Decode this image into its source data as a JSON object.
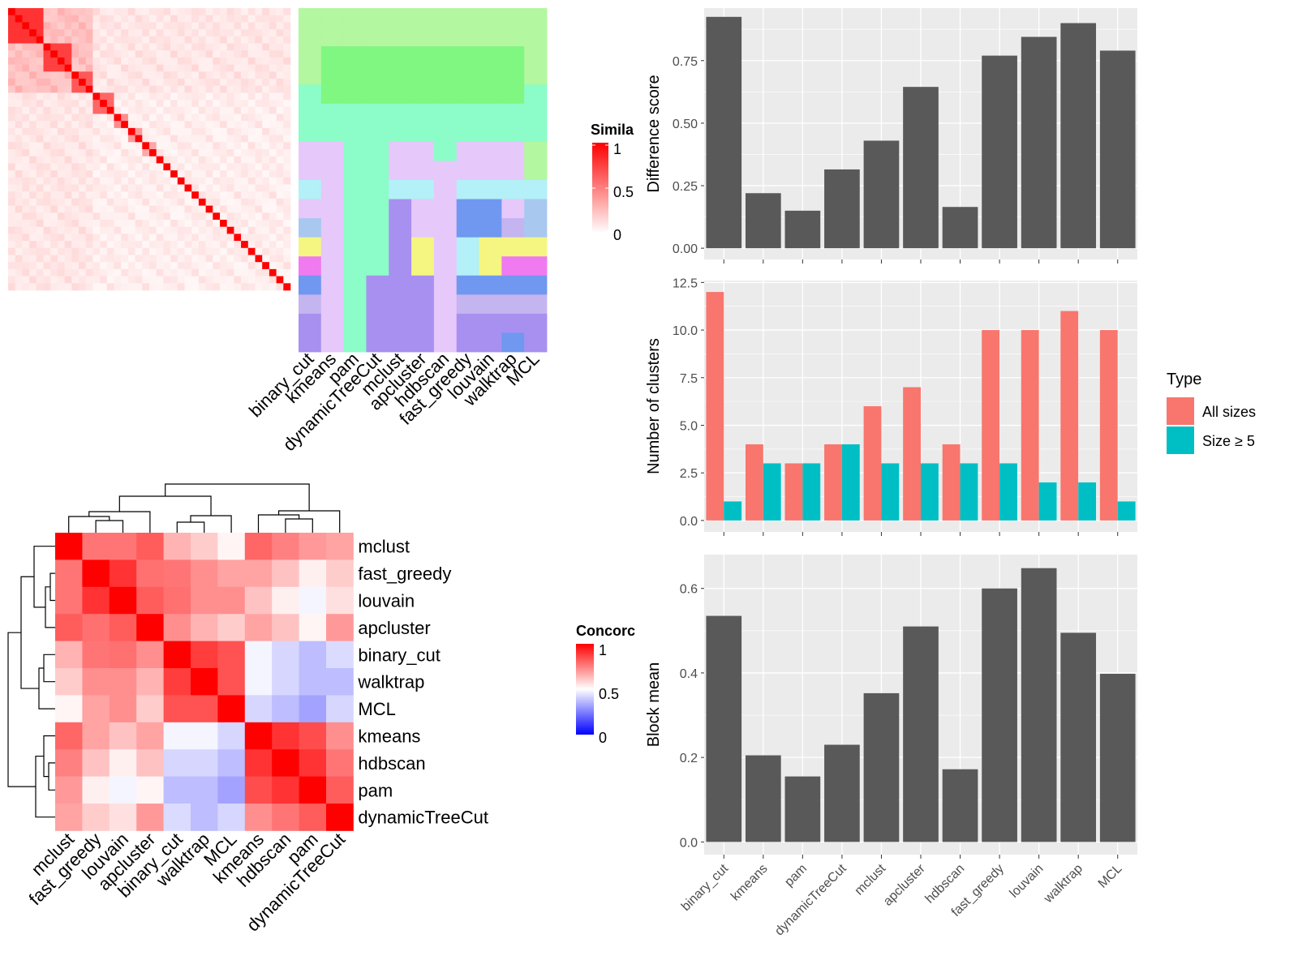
{
  "colors": {
    "sim_high": "#ff0000",
    "sim_low": "#ffffff",
    "conc_high": "#ff0000",
    "conc_mid": "#ffffff",
    "conc_low": "#0000ff",
    "bar_gray": "#595959",
    "all_sizes": "#f8766d",
    "size_ge5": "#00bfc4",
    "panel_bg": "#ebebeb",
    "grid": "#ffffff"
  },
  "chart_data": [
    {
      "type": "heatmap",
      "title": "",
      "legend_title": "Simila",
      "legend_ticks": [
        "1",
        "0.5",
        "0"
      ],
      "n_rows": 40,
      "n_cols": 40,
      "diagonal": 1,
      "blocks": [
        {
          "start": 0,
          "end": 5,
          "value": 0.8
        },
        {
          "start": 5,
          "end": 9,
          "value": 0.75
        },
        {
          "start": 9,
          "end": 12,
          "value": 0.65
        },
        {
          "start": 12,
          "end": 15,
          "value": 0.6
        },
        {
          "start": 15,
          "end": 17,
          "value": 0.45
        },
        {
          "start": 17,
          "end": 19,
          "value": 0.4
        },
        {
          "start": 19,
          "end": 21,
          "value": 0.35
        }
      ]
    },
    {
      "type": "heatmap",
      "title": "",
      "columns": [
        "binary_cut",
        "kmeans",
        "pam",
        "dynamicTreeCut",
        "mclust",
        "apcluster",
        "hdbscan",
        "fast_greedy",
        "louvain",
        "walktrap",
        "MCL"
      ],
      "palette": [
        "#b3f7a0",
        "#80f780",
        "#8cfcc8",
        "#e6c8fa",
        "#b3f0f7",
        "#a8c8f0",
        "#f5f582",
        "#f07af0",
        "#7098f0",
        "#c4b4f0",
        "#a890f0"
      ],
      "class_labels": [
        [
          0,
          0,
          0,
          0,
          0,
          0,
          0,
          0,
          0,
          0,
          0
        ],
        [
          0,
          0,
          0,
          0,
          0,
          0,
          0,
          0,
          0,
          0,
          0
        ],
        [
          0,
          1,
          1,
          1,
          1,
          1,
          1,
          1,
          1,
          1,
          0
        ],
        [
          0,
          1,
          1,
          1,
          1,
          1,
          1,
          1,
          1,
          1,
          0
        ],
        [
          2,
          1,
          1,
          1,
          1,
          1,
          1,
          1,
          1,
          1,
          2
        ],
        [
          2,
          2,
          2,
          2,
          2,
          2,
          2,
          2,
          2,
          2,
          2
        ],
        [
          2,
          2,
          2,
          2,
          2,
          2,
          2,
          2,
          2,
          2,
          2
        ],
        [
          3,
          3,
          2,
          2,
          3,
          3,
          2,
          3,
          3,
          3,
          0
        ],
        [
          3,
          3,
          2,
          2,
          3,
          3,
          3,
          3,
          3,
          3,
          0
        ],
        [
          4,
          3,
          2,
          2,
          4,
          4,
          3,
          4,
          4,
          4,
          4
        ],
        [
          3,
          3,
          2,
          2,
          10,
          3,
          3,
          8,
          8,
          3,
          5
        ],
        [
          5,
          3,
          2,
          2,
          10,
          3,
          3,
          8,
          8,
          9,
          5
        ],
        [
          6,
          3,
          2,
          2,
          10,
          6,
          3,
          4,
          6,
          6,
          6
        ],
        [
          7,
          3,
          2,
          2,
          10,
          6,
          3,
          4,
          6,
          7,
          7
        ],
        [
          8,
          3,
          2,
          10,
          10,
          10,
          3,
          8,
          8,
          8,
          8
        ],
        [
          9,
          3,
          2,
          10,
          10,
          10,
          3,
          9,
          9,
          9,
          9
        ],
        [
          10,
          3,
          2,
          10,
          10,
          10,
          3,
          10,
          10,
          10,
          10
        ],
        [
          10,
          3,
          2,
          10,
          10,
          10,
          3,
          10,
          10,
          8,
          10
        ]
      ]
    },
    {
      "type": "heatmap",
      "title": "",
      "legend_title": "Concorc",
      "legend_ticks": [
        "1",
        "0.5",
        "0"
      ],
      "rows": [
        "mclust",
        "fast_greedy",
        "louvain",
        "apcluster",
        "binary_cut",
        "walktrap",
        "MCL",
        "kmeans",
        "hdbscan",
        "pam",
        "dynamicTreeCut"
      ],
      "columns": [
        "mclust",
        "fast_greedy",
        "louvain",
        "apcluster",
        "binary_cut",
        "walktrap",
        "MCL",
        "kmeans",
        "hdbscan",
        "pam",
        "dynamicTreeCut"
      ],
      "values": [
        [
          1.0,
          0.77,
          0.77,
          0.82,
          0.65,
          0.6,
          0.52,
          0.8,
          0.75,
          0.7,
          0.68
        ],
        [
          0.77,
          1.0,
          0.9,
          0.78,
          0.77,
          0.72,
          0.68,
          0.68,
          0.62,
          0.53,
          0.6
        ],
        [
          0.77,
          0.9,
          1.0,
          0.82,
          0.78,
          0.72,
          0.72,
          0.62,
          0.53,
          0.48,
          0.56
        ],
        [
          0.82,
          0.78,
          0.82,
          1.0,
          0.72,
          0.65,
          0.6,
          0.68,
          0.62,
          0.52,
          0.7
        ],
        [
          0.65,
          0.77,
          0.78,
          0.72,
          1.0,
          0.88,
          0.84,
          0.48,
          0.42,
          0.37,
          0.43
        ],
        [
          0.6,
          0.72,
          0.72,
          0.65,
          0.88,
          1.0,
          0.84,
          0.48,
          0.42,
          0.37,
          0.37
        ],
        [
          0.52,
          0.68,
          0.72,
          0.6,
          0.84,
          0.84,
          1.0,
          0.42,
          0.37,
          0.32,
          0.42
        ],
        [
          0.8,
          0.68,
          0.62,
          0.68,
          0.48,
          0.48,
          0.42,
          1.0,
          0.9,
          0.85,
          0.72
        ],
        [
          0.75,
          0.62,
          0.53,
          0.62,
          0.42,
          0.42,
          0.37,
          0.9,
          1.0,
          0.9,
          0.77
        ],
        [
          0.7,
          0.53,
          0.48,
          0.52,
          0.37,
          0.37,
          0.32,
          0.85,
          0.9,
          1.0,
          0.82
        ],
        [
          0.68,
          0.6,
          0.56,
          0.7,
          0.43,
          0.37,
          0.42,
          0.72,
          0.77,
          0.82,
          1.0
        ]
      ]
    },
    {
      "type": "bar",
      "title": "",
      "xlabel": "",
      "ylabel": "Difference score",
      "categories": [
        "binary_cut",
        "kmeans",
        "pam",
        "dynamicTreeCut",
        "mclust",
        "apcluster",
        "hdbscan",
        "fast_greedy",
        "louvain",
        "walktrap",
        "MCL"
      ],
      "values": [
        0.925,
        0.22,
        0.15,
        0.315,
        0.43,
        0.645,
        0.165,
        0.77,
        0.845,
        0.9,
        0.79
      ],
      "ylim": [
        -0.045,
        0.96
      ],
      "yticks": [
        0,
        0.25,
        0.5,
        0.75
      ],
      "ytick_labels": [
        "0.00",
        "0.25",
        "0.50",
        "0.75"
      ],
      "grid": true
    },
    {
      "type": "bar",
      "title": "",
      "xlabel": "",
      "ylabel": "Number of clusters",
      "categories": [
        "binary_cut",
        "kmeans",
        "pam",
        "dynamicTreeCut",
        "mclust",
        "apcluster",
        "hdbscan",
        "fast_greedy",
        "louvain",
        "walktrap",
        "MCL"
      ],
      "series": [
        {
          "name": "All sizes",
          "values": [
            12,
            4,
            3,
            4,
            6,
            7,
            4,
            10,
            10,
            11,
            10
          ]
        },
        {
          "name": "Size ≥ 5",
          "values": [
            1,
            3,
            3,
            4,
            3,
            3,
            3,
            3,
            2,
            2,
            1
          ]
        }
      ],
      "ylim": [
        -0.6,
        12.6
      ],
      "yticks": [
        0,
        2.5,
        5,
        7.5,
        10,
        12.5
      ],
      "ytick_labels": [
        "0.0",
        "2.5",
        "5.0",
        "7.5",
        "10.0",
        "12.5"
      ],
      "legend_title": "Type",
      "legend_position": "right",
      "grid": true
    },
    {
      "type": "bar",
      "title": "",
      "xlabel": "",
      "ylabel": "Block mean",
      "categories": [
        "binary_cut",
        "kmeans",
        "pam",
        "dynamicTreeCut",
        "mclust",
        "apcluster",
        "hdbscan",
        "fast_greedy",
        "louvain",
        "walktrap",
        "MCL"
      ],
      "values": [
        0.535,
        0.205,
        0.155,
        0.23,
        0.352,
        0.51,
        0.172,
        0.6,
        0.648,
        0.495,
        0.398
      ],
      "ylim": [
        -0.03,
        0.68
      ],
      "yticks": [
        0,
        0.2,
        0.4,
        0.6
      ],
      "ytick_labels": [
        "0.0",
        "0.2",
        "0.4",
        "0.6"
      ],
      "grid": true
    }
  ]
}
